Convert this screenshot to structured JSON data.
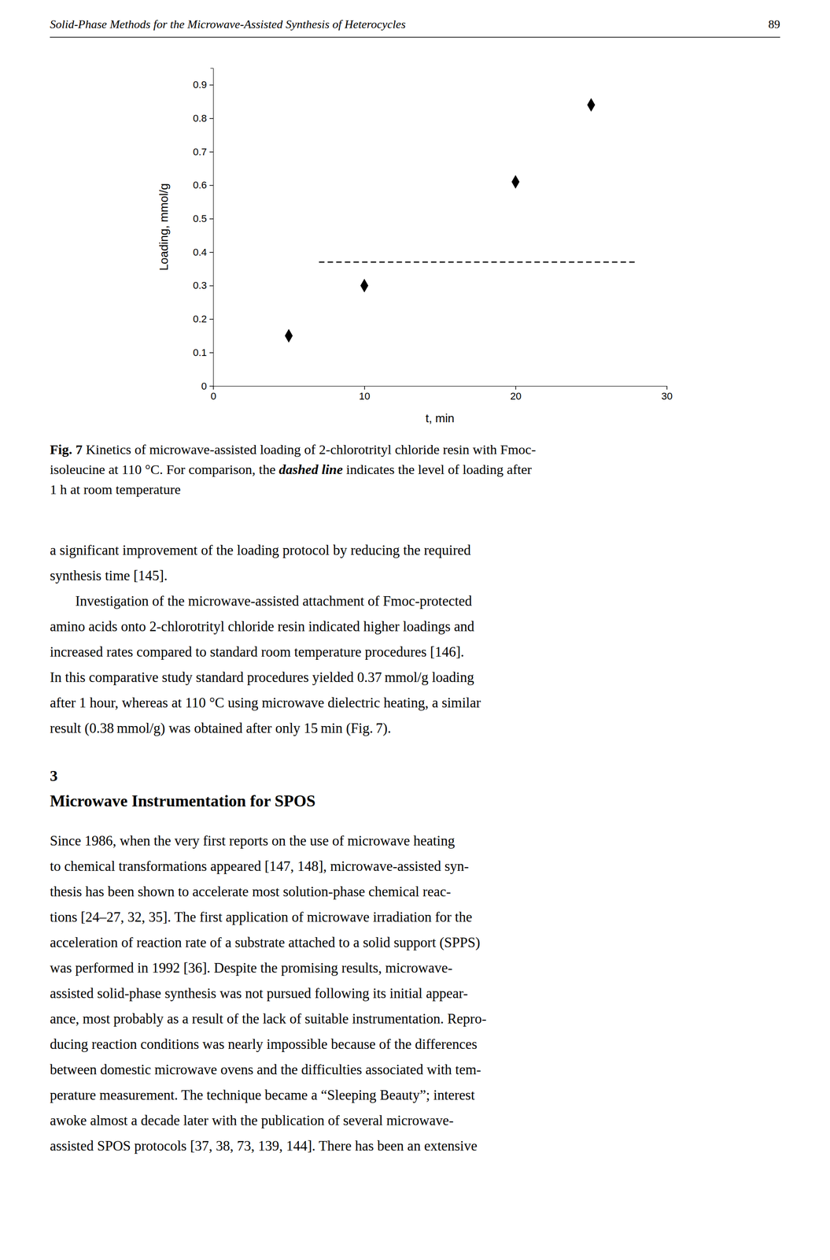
{
  "page_header": "Solid-Phase Methods for the Microwave-Assisted Synthesis of Heterocycles",
  "page_number": "89",
  "chart_data": {
    "type": "scatter",
    "xlabel": "t, min",
    "ylabel": "Loading, mmol/g",
    "xlim": [
      0,
      30
    ],
    "ylim": [
      0,
      0.95
    ],
    "xticks": [
      0,
      10,
      20,
      30
    ],
    "yticks": [
      0,
      0.1,
      0.2,
      0.3,
      0.4,
      0.5,
      0.6,
      0.7,
      0.8,
      0.9
    ],
    "series": [
      {
        "type": "scatter",
        "marker": "diamond",
        "color": "black",
        "x": [
          5,
          10,
          20,
          25
        ],
        "values": [
          0.15,
          0.3,
          0.61,
          0.84
        ]
      },
      {
        "type": "line",
        "line_style": "dashed",
        "color": "black",
        "x": [
          7,
          28
        ],
        "values": [
          0.37,
          0.37
        ]
      }
    ]
  },
  "caption": {
    "label": "Fig. 7",
    "emphasis": "dashed line",
    "lines": [
      [
        " Kinetics of microwave-assisted loading of 2-chlorotrityl chloride resin with Fmoc-"
      ],
      [
        "isoleucine at 110 °C. For comparison, the ",
        "dashed line",
        " indicates the level of loading after"
      ],
      [
        "1 h at room temperature"
      ]
    ]
  },
  "body": {
    "sections": [
      {
        "paragraphs": [
          [
            "a significant improvement of the loading protocol by reducing the required",
            "synthesis time [145]."
          ],
          [
            "Investigation of the microwave-assisted attachment of Fmoc-protected",
            "amino acids onto 2-chlorotrityl chloride resin indicated higher loadings and",
            "increased rates compared to standard room temperature procedures [146].",
            "In this comparative study standard procedures yielded 0.37 mmol/g loading",
            "after 1 hour, whereas at 110 °C using microwave dielectric heating, a similar",
            "result (0.38 mmol/g) was obtained after only 15 min (Fig. 7)."
          ]
        ]
      },
      {
        "number": "3",
        "title": "Microwave Instrumentation for SPOS",
        "paragraphs": [
          [
            "Since 1986, when the very first reports on the use of microwave heating",
            "to chemical transformations appeared [147, 148], microwave-assisted syn-",
            "thesis has been shown to accelerate most solution-phase chemical reac-",
            "tions [24–27, 32, 35]. The first application of microwave irradiation for the",
            "acceleration of reaction rate of a substrate attached to a solid support (SPPS)",
            "was performed in 1992 [36]. Despite the promising results, microwave-",
            "assisted solid-phase synthesis was not pursued following its initial appear-",
            "ance, most probably as a result of the lack of suitable instrumentation. Repro-",
            "ducing reaction conditions was nearly impossible because of the differences",
            "between domestic microwave ovens and the difficulties associated with tem-",
            "perature measurement. The technique became a “Sleeping Beauty”; interest",
            "awoke almost a decade later with the publication of several microwave-",
            "assisted SPOS protocols [37, 38, 73, 139, 144]. There has been an extensive"
          ]
        ]
      }
    ]
  }
}
